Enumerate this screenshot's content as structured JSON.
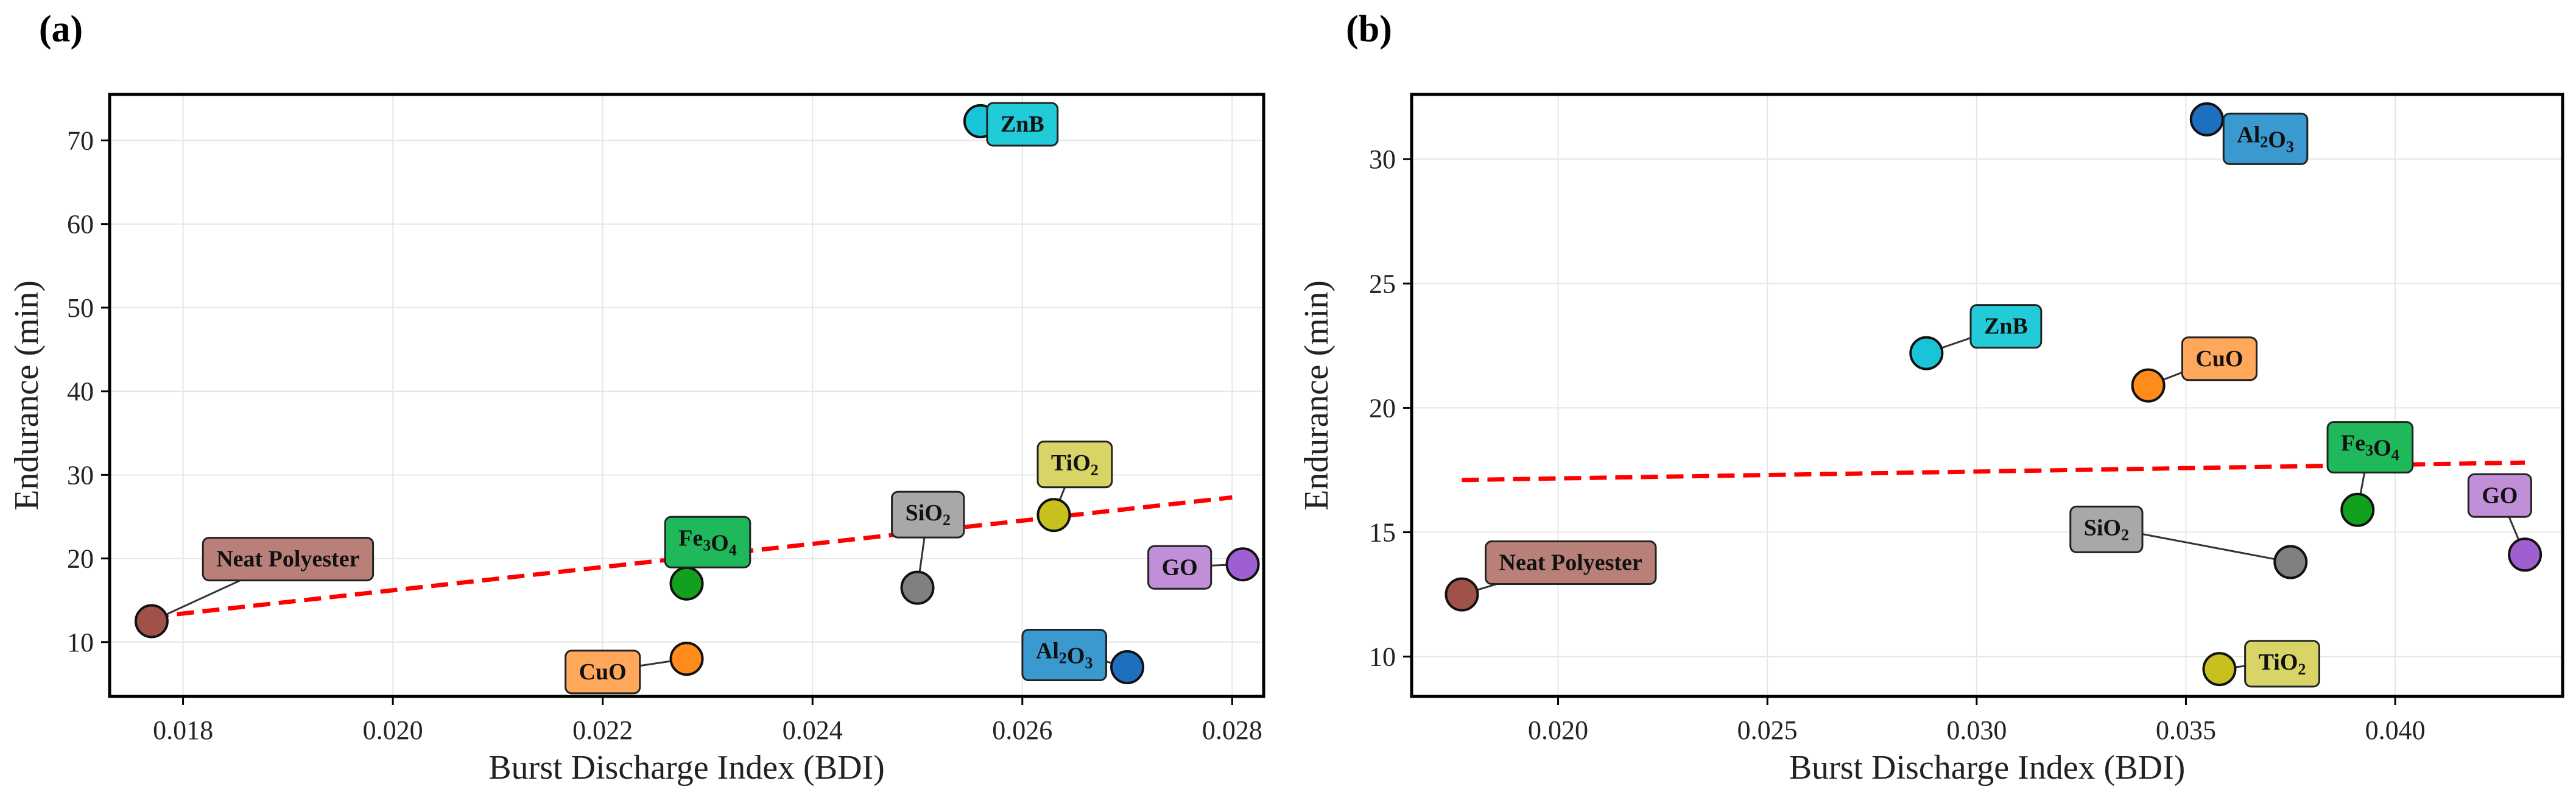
{
  "chart_data": [
    {
      "panel": "(a)",
      "type": "scatter",
      "xlabel": "Burst Discharge Index (BDI)",
      "ylabel": "Endurance (min)",
      "xlim": [
        0.0173,
        0.0283
      ],
      "ylim": [
        3.5,
        75.5
      ],
      "xticks": [
        "0.018",
        "0.020",
        "0.022",
        "0.024",
        "0.026",
        "0.028"
      ],
      "xtick_values": [
        0.018,
        0.02,
        0.022,
        0.024,
        0.026,
        0.028
      ],
      "yticks": [
        "10",
        "20",
        "30",
        "40",
        "50",
        "60",
        "70"
      ],
      "ytick_values": [
        10,
        20,
        30,
        40,
        50,
        60,
        70
      ],
      "grid": true,
      "points": [
        {
          "name": "Neat Polyester",
          "x": 0.0177,
          "y": 12.5,
          "color": "#a0524a",
          "label_bg": "#b88078",
          "label_pos": [
            0.019,
            20
          ]
        },
        {
          "name": "Fe3O4",
          "x": 0.0228,
          "y": 17.0,
          "color": "#12a01f",
          "label_bg": "#1fb85a",
          "label_pos": [
            0.023,
            22.5
          ]
        },
        {
          "name": "CuO",
          "x": 0.0228,
          "y": 8.0,
          "color": "#ff8c1a",
          "label_bg": "#ffa75a",
          "label_pos": [
            0.022,
            6.5
          ]
        },
        {
          "name": "SiO2",
          "x": 0.025,
          "y": 16.5,
          "color": "#808080",
          "label_bg": "#a8a8a8",
          "label_pos": [
            0.0251,
            25.5
          ]
        },
        {
          "name": "TiO2",
          "x": 0.0263,
          "y": 25.2,
          "color": "#c8c01e",
          "label_bg": "#d8d466",
          "label_pos": [
            0.0265,
            31.5
          ]
        },
        {
          "name": "ZnB",
          "x": 0.0256,
          "y": 72.3,
          "color": "#1ac4d8",
          "label_bg": "#22cbd8",
          "label_pos": [
            0.026,
            72
          ]
        },
        {
          "name": "GO",
          "x": 0.0281,
          "y": 19.3,
          "color": "#a05fd0",
          "label_bg": "#c08fd8",
          "label_pos": [
            0.0275,
            19
          ]
        },
        {
          "name": "Al2O3",
          "x": 0.027,
          "y": 7.0,
          "color": "#1f6fc0",
          "label_bg": "#3a9ad0",
          "label_pos": [
            0.0264,
            9
          ]
        }
      ],
      "trendline": {
        "x": [
          0.0177,
          0.028
        ],
        "y": [
          13.0,
          27.3
        ],
        "color": "#ff0000",
        "style": "dashed"
      }
    },
    {
      "panel": "(b)",
      "type": "scatter",
      "xlabel": "Burst Discharge Index (BDI)",
      "ylabel": "Endurance (min)",
      "xlim": [
        0.0165,
        0.044
      ],
      "ylim": [
        8.4,
        32.6
      ],
      "xticks": [
        "0.020",
        "0.025",
        "0.030",
        "0.035",
        "0.040"
      ],
      "xtick_values": [
        0.02,
        0.025,
        0.03,
        0.035,
        0.04
      ],
      "yticks": [
        "10",
        "15",
        "20",
        "25",
        "30"
      ],
      "ytick_values": [
        10,
        15,
        20,
        25,
        30
      ],
      "grid": true,
      "points": [
        {
          "name": "Neat Polyester",
          "x": 0.0177,
          "y": 12.5,
          "color": "#a0524a",
          "label_bg": "#b88078",
          "label_pos": [
            0.0203,
            13.8
          ]
        },
        {
          "name": "ZnB",
          "x": 0.0288,
          "y": 22.2,
          "color": "#1ac4d8",
          "label_bg": "#22cbd8",
          "label_pos": [
            0.0307,
            23.3
          ]
        },
        {
          "name": "CuO",
          "x": 0.0341,
          "y": 20.9,
          "color": "#ff8c1a",
          "label_bg": "#ffa75a",
          "label_pos": [
            0.0358,
            22.0
          ]
        },
        {
          "name": "Al2O3",
          "x": 0.0355,
          "y": 31.6,
          "color": "#1f6fc0",
          "label_bg": "#3a9ad0",
          "label_pos": [
            0.0369,
            31.0
          ]
        },
        {
          "name": "Fe3O4",
          "x": 0.0391,
          "y": 15.9,
          "color": "#12a01f",
          "label_bg": "#1fb85a",
          "label_pos": [
            0.0394,
            18.6
          ]
        },
        {
          "name": "SiO2",
          "x": 0.0375,
          "y": 13.8,
          "color": "#808080",
          "label_bg": "#a8a8a8",
          "label_pos": [
            0.0331,
            15.2
          ]
        },
        {
          "name": "GO",
          "x": 0.0431,
          "y": 14.1,
          "color": "#a05fd0",
          "label_bg": "#c08fd8",
          "label_pos": [
            0.0425,
            16.5
          ]
        },
        {
          "name": "TiO2",
          "x": 0.0358,
          "y": 9.5,
          "color": "#c8c01e",
          "label_bg": "#d8d466",
          "label_pos": [
            0.0373,
            9.8
          ]
        }
      ],
      "trendline": {
        "x": [
          0.0177,
          0.0431
        ],
        "y": [
          17.1,
          17.8
        ],
        "color": "#ff0000",
        "style": "dashed"
      }
    }
  ]
}
